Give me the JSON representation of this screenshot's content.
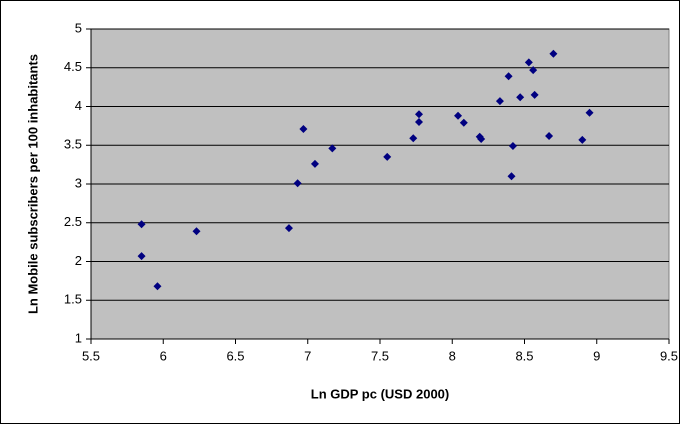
{
  "chart_data": {
    "type": "scatter",
    "xlabel": "Ln GDP pc (USD 2000)",
    "ylabel": "Ln Mobile subscribers per 100 inhabitants",
    "x": [
      5.85,
      5.85,
      5.96,
      6.23,
      6.87,
      6.93,
      6.97,
      7.05,
      7.17,
      7.55,
      7.73,
      7.77,
      7.77,
      8.04,
      8.08,
      8.19,
      8.2,
      8.33,
      8.39,
      8.41,
      8.42,
      8.47,
      8.53,
      8.56,
      8.57,
      8.67,
      8.7,
      8.9,
      8.95
    ],
    "y": [
      2.48,
      2.07,
      1.68,
      2.39,
      2.43,
      3.01,
      3.71,
      3.26,
      3.46,
      3.35,
      3.59,
      3.9,
      3.8,
      3.88,
      3.79,
      3.61,
      3.58,
      4.07,
      4.39,
      3.1,
      3.49,
      4.12,
      4.57,
      4.47,
      4.15,
      3.62,
      4.68,
      3.57,
      3.92
    ],
    "color": "#000080",
    "xlim": [
      5.5,
      9.5
    ],
    "xticks": [
      5.5,
      6,
      6.5,
      7,
      7.5,
      8,
      8.5,
      9,
      9.5
    ],
    "ylim": [
      1,
      5
    ],
    "yticks": [
      1,
      1.5,
      2,
      2.5,
      3,
      3.5,
      4,
      4.5,
      5
    ],
    "grid": true
  }
}
